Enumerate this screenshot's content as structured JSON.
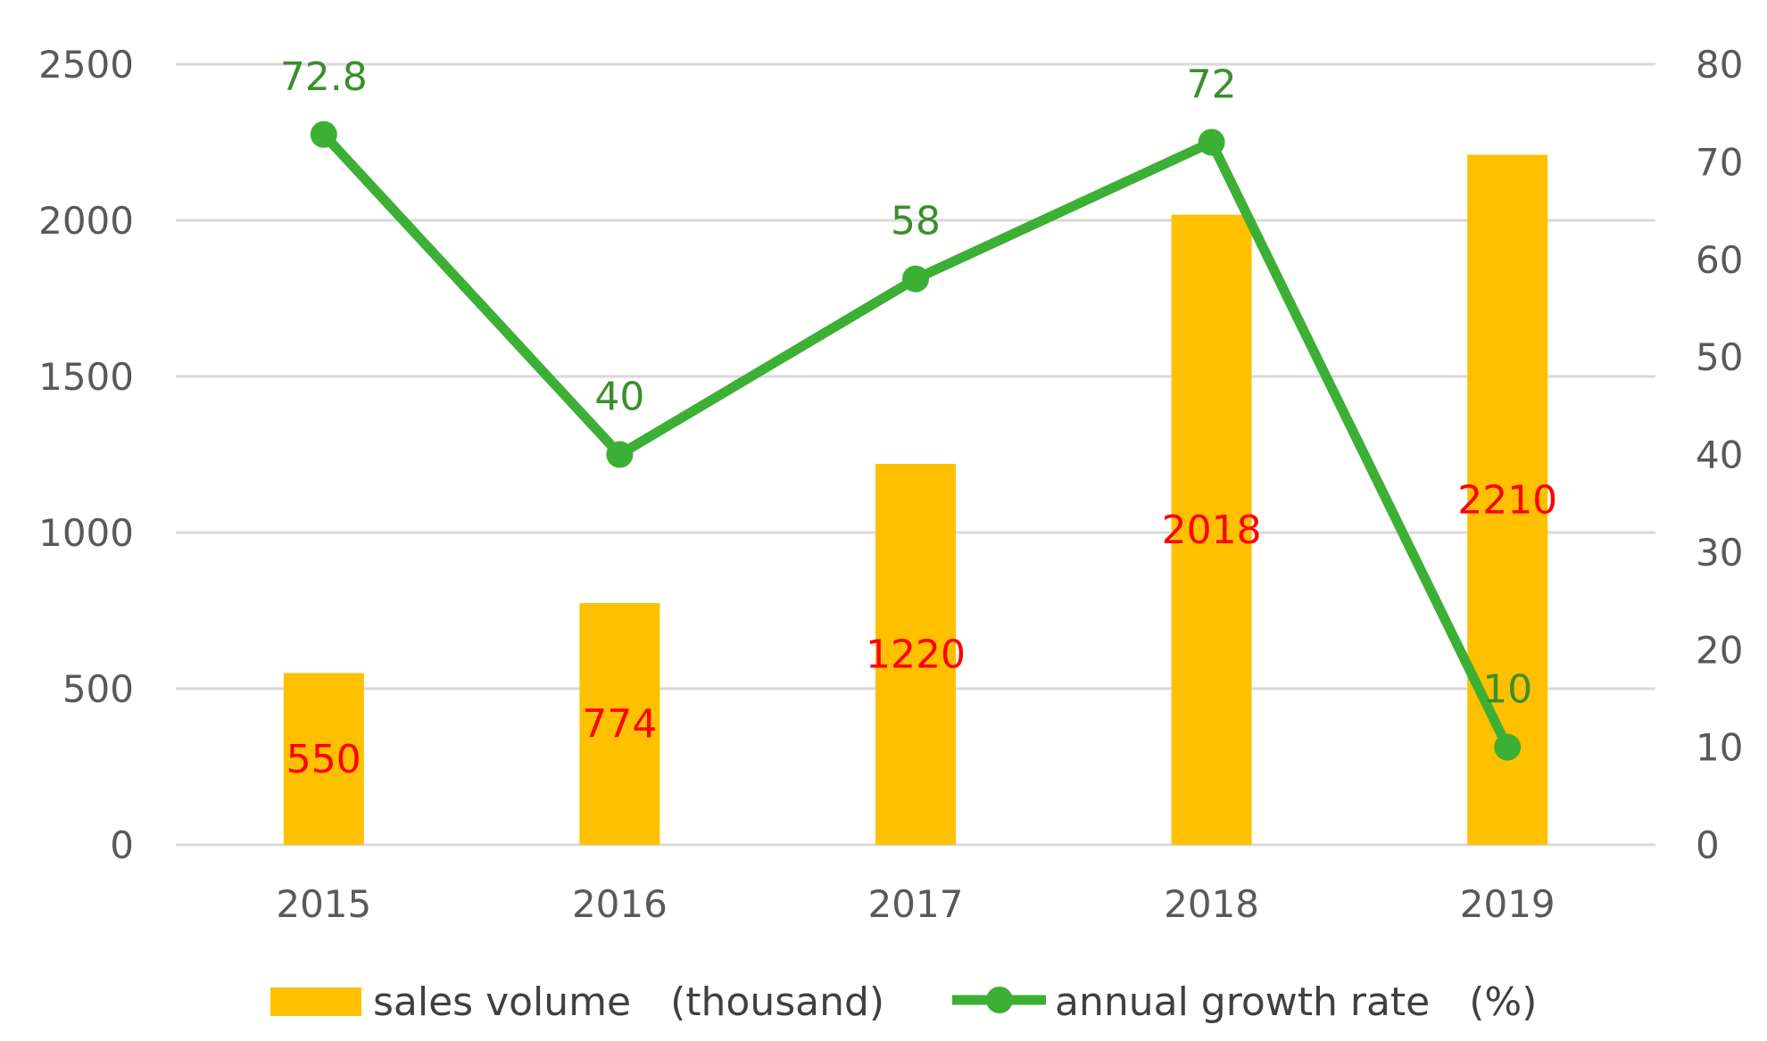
{
  "chart_data": {
    "type": "bar+line",
    "categories": [
      "2015",
      "2016",
      "2017",
      "2018",
      "2019"
    ],
    "series": [
      {
        "name": "sales volume　(thousand)",
        "type": "bar",
        "axis": "left",
        "values": [
          550,
          774,
          1220,
          2018,
          2210
        ],
        "color": "#FFC000",
        "label_color": "#FF0000"
      },
      {
        "name": "annual growth rate　(%)",
        "type": "line",
        "axis": "right",
        "values": [
          72.8,
          40,
          58,
          72,
          10
        ],
        "color": "#3CB034",
        "label_color": "#3A8F2B"
      }
    ],
    "left_axis": {
      "ticks": [
        0,
        500,
        1000,
        1500,
        2000,
        2500
      ],
      "ylim": [
        0,
        2500
      ]
    },
    "right_axis": {
      "ticks": [
        0,
        10,
        20,
        30,
        40,
        50,
        60,
        70,
        80
      ],
      "ylim": [
        0,
        80
      ]
    },
    "grid": true,
    "legend": "bottom-center"
  }
}
